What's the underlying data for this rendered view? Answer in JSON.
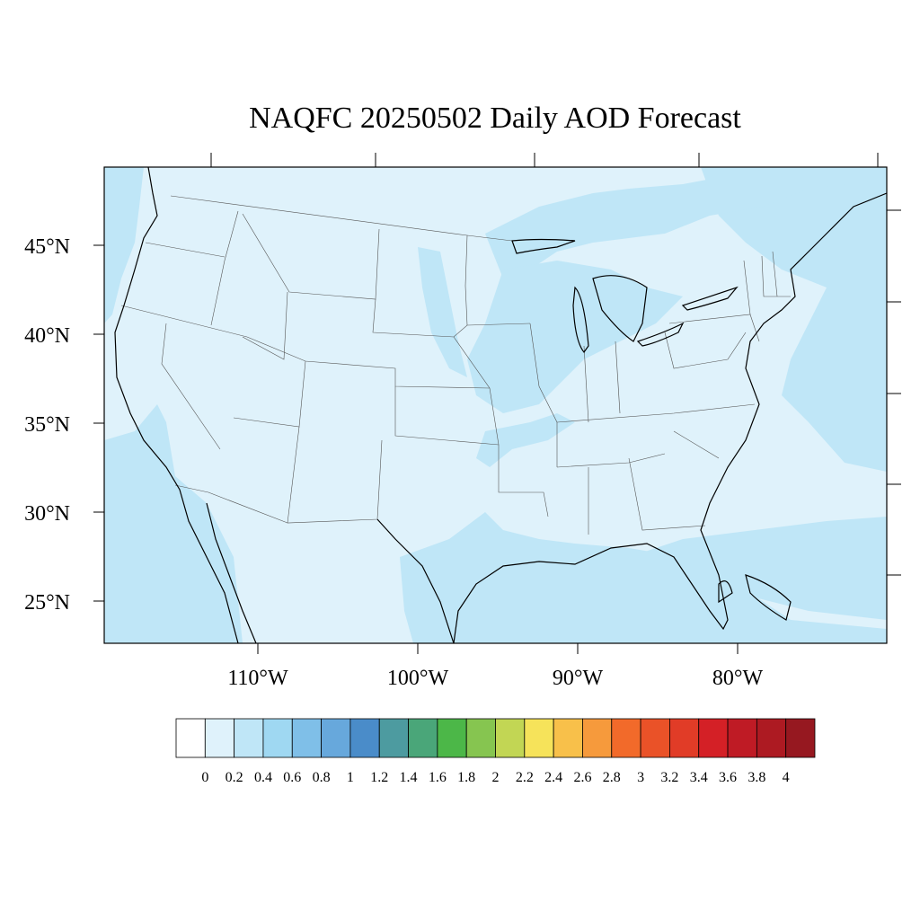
{
  "title": "NAQFC 20250502 Daily AOD Forecast",
  "map": {
    "lat_labels": [
      "45°N",
      "40°N",
      "35°N",
      "30°N",
      "25°N"
    ],
    "lon_labels": [
      "110°W",
      "100°W",
      "90°W",
      "80°W"
    ],
    "colors": {
      "background": "#dff2fb",
      "band": "#bfe6f7",
      "border": "#000000"
    }
  },
  "colorbar": {
    "colors": [
      "#ffffff",
      "#dff2fb",
      "#bfe6f7",
      "#9fd8f2",
      "#7fbfe8",
      "#67a8dc",
      "#4a8cc9",
      "#4d9ba0",
      "#4aa679",
      "#4cb748",
      "#86c550",
      "#c2d654",
      "#f6e35a",
      "#f8c04a",
      "#f69a3c",
      "#f26a2a",
      "#ea5228",
      "#e13c27",
      "#d42026",
      "#bf1b25",
      "#ad1a22",
      "#961820"
    ],
    "labels": [
      "0",
      "0.2",
      "0.4",
      "0.6",
      "0.8",
      "1",
      "1.2",
      "1.4",
      "1.6",
      "1.8",
      "2",
      "2.2",
      "2.4",
      "2.6",
      "2.8",
      "3",
      "3.2",
      "3.4",
      "3.6",
      "3.8",
      "4"
    ]
  }
}
